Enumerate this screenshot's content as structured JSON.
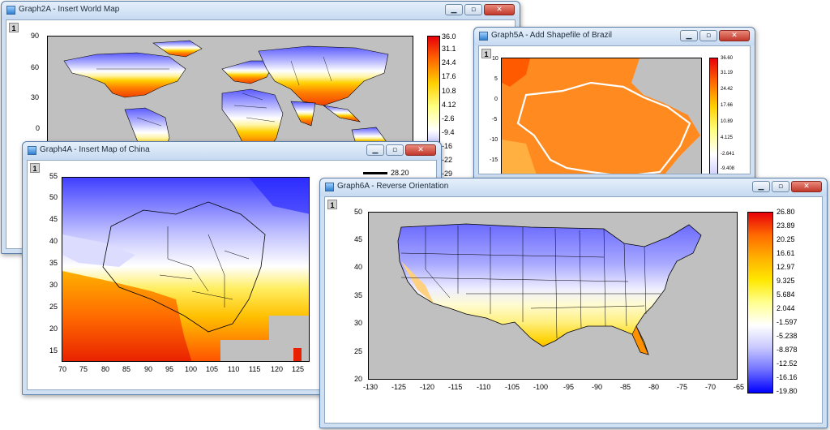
{
  "windows": [
    {
      "title": "Graph2A - Insert World Map",
      "layer": "1",
      "y_ticks": [
        "90",
        "60",
        "30",
        "0"
      ],
      "cbar_labels": [
        "36.0",
        "31.1",
        "24.4",
        "17.6",
        "10.8",
        "4.12",
        "-2.6",
        "-9.4",
        "-16",
        "-22",
        "-29"
      ]
    },
    {
      "title": "Graph5A - Add Shapefile of Brazil",
      "layer": "1",
      "y_ticks": [
        "10",
        "5",
        "0",
        "-5",
        "-10",
        "-15"
      ],
      "cbar_labels": [
        "36.60",
        "31.19",
        "24.42",
        "17.66",
        "10.89",
        "4.125",
        "-2.641",
        "-9.408"
      ]
    },
    {
      "title": "Graph4A - Insert Map of China",
      "layer": "1",
      "y_ticks": [
        "55",
        "50",
        "45",
        "40",
        "35",
        "30",
        "25",
        "20",
        "15"
      ],
      "x_ticks": [
        "70",
        "75",
        "80",
        "85",
        "90",
        "95",
        "100",
        "105",
        "110",
        "115",
        "120",
        "125"
      ],
      "cbar_top": "28.20"
    },
    {
      "title": "Graph6A - Reverse Orientation",
      "layer": "1",
      "y_ticks": [
        "50",
        "45",
        "40",
        "35",
        "30",
        "25",
        "20"
      ],
      "x_ticks": [
        "-130",
        "-125",
        "-120",
        "-115",
        "-110",
        "-105",
        "-100",
        "-95",
        "-90",
        "-85",
        "-80",
        "-75",
        "-70",
        "-65"
      ],
      "cbar_labels": [
        "26.80",
        "23.89",
        "20.25",
        "16.61",
        "12.97",
        "9.325",
        "5.684",
        "2.044",
        "-1.597",
        "-5.238",
        "-8.878",
        "-12.52",
        "-16.16",
        "-19.80"
      ]
    }
  ],
  "colors": {
    "hot": "#e8000a",
    "warm": "#ffe800",
    "neutral": "#ffffff",
    "cold": "#0000ff",
    "plot_bg": "#c0c0c0"
  },
  "icons": {
    "minimize": "minimize-icon",
    "maximize": "maximize-icon",
    "close": "close-icon"
  }
}
